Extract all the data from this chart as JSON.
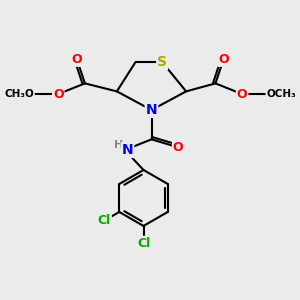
{
  "bg_color": "#ebebeb",
  "atom_colors": {
    "S": "#aaaa00",
    "N": "#0000ff",
    "O": "#ff0000",
    "Cl": "#00aa00",
    "C": "#000000",
    "H": "#888888"
  },
  "bond_color": "#000000",
  "bond_width": 1.5
}
